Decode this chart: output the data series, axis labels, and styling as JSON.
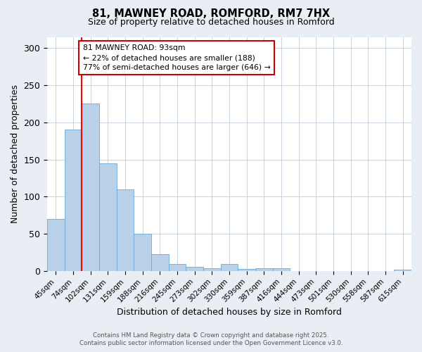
{
  "title_line1": "81, MAWNEY ROAD, ROMFORD, RM7 7HX",
  "title_line2": "Size of property relative to detached houses in Romford",
  "xlabel": "Distribution of detached houses by size in Romford",
  "ylabel": "Number of detached properties",
  "categories": [
    "45sqm",
    "74sqm",
    "102sqm",
    "131sqm",
    "159sqm",
    "188sqm",
    "216sqm",
    "245sqm",
    "273sqm",
    "302sqm",
    "330sqm",
    "359sqm",
    "387sqm",
    "416sqm",
    "444sqm",
    "473sqm",
    "501sqm",
    "530sqm",
    "558sqm",
    "587sqm",
    "615sqm"
  ],
  "values": [
    70,
    190,
    225,
    145,
    110,
    50,
    23,
    9,
    6,
    4,
    9,
    3,
    4,
    4,
    0,
    0,
    0,
    0,
    0,
    0,
    2
  ],
  "bar_color": "#b8d0e8",
  "bar_edge_color": "#6aaad4",
  "annotation_text": "81 MAWNEY ROAD: 93sqm\n← 22% of detached houses are smaller (188)\n77% of semi-detached houses are larger (646) →",
  "annotation_box_color": "#ffffff",
  "annotation_box_edge": "#cc0000",
  "footnote_line1": "Contains HM Land Registry data © Crown copyright and database right 2025.",
  "footnote_line2": "Contains public sector information licensed under the Open Government Licence v3.0.",
  "background_color": "#e8eef4",
  "plot_background": "#ffffff",
  "ylim": [
    0,
    315
  ],
  "yticks": [
    0,
    50,
    100,
    150,
    200,
    250,
    300
  ],
  "red_line_x": 1.5
}
